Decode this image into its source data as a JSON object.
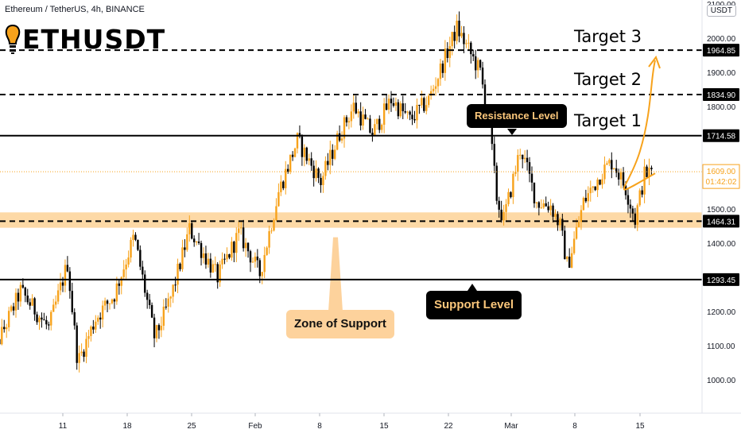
{
  "header": {
    "symbol_full": "Ethereum / TetherUS, 4h, BINANCE",
    "ticker": "ETHUSDT",
    "currency_button": "USDT"
  },
  "colors": {
    "up_candle": "#f7a21b",
    "down_candle": "#000000",
    "zone_fill": "#fdd9a6",
    "arrow": "#f7a21b"
  },
  "chart_data": {
    "type": "candlestick",
    "title": "Ethereum / TetherUS, 4h, BINANCE",
    "y_axis": {
      "ticks": [
        1000,
        1100,
        1200,
        1300,
        1400,
        1500,
        1800,
        1900,
        2000,
        2100
      ],
      "tick_labels": [
        "1000.00",
        "1100.00",
        "1200.00",
        "1300.00",
        "1400.00",
        "1500.00",
        "1800.00",
        "1900.00",
        "2000.00",
        "2100.00"
      ],
      "range": [
        935,
        2115
      ]
    },
    "x_axis": {
      "tick_labels": [
        "11",
        "18",
        "25",
        "Feb",
        "8",
        "15",
        "22",
        "Mar",
        "8",
        "15"
      ]
    },
    "price_path": [
      {
        "t": 3.0,
        "p": 1040
      },
      {
        "t": 6.5,
        "p": 1260
      },
      {
        "t": 9.5,
        "p": 1150
      },
      {
        "t": 11.5,
        "p": 1340
      },
      {
        "t": 12.6,
        "p": 1050
      },
      {
        "t": 14.5,
        "p": 1180
      },
      {
        "t": 16.5,
        "p": 1250
      },
      {
        "t": 18.6,
        "p": 1420
      },
      {
        "t": 20.8,
        "p": 1120
      },
      {
        "t": 22.5,
        "p": 1240
      },
      {
        "t": 24.5,
        "p": 1440
      },
      {
        "t": 27.5,
        "p": 1300
      },
      {
        "t": 29.8,
        "p": 1430
      },
      {
        "t": 32.0,
        "p": 1310
      },
      {
        "t": 34.0,
        "p": 1550
      },
      {
        "t": 36.0,
        "p": 1700
      },
      {
        "t": 38.5,
        "p": 1580
      },
      {
        "t": 40.5,
        "p": 1720
      },
      {
        "t": 42.0,
        "p": 1800
      },
      {
        "t": 44.0,
        "p": 1720
      },
      {
        "t": 46.0,
        "p": 1820
      },
      {
        "t": 48.0,
        "p": 1760
      },
      {
        "t": 50.0,
        "p": 1820
      },
      {
        "t": 52.0,
        "p": 1960
      },
      {
        "t": 53.0,
        "p": 2030
      },
      {
        "t": 55.5,
        "p": 1900
      },
      {
        "t": 56.5,
        "p": 1740
      },
      {
        "t": 57.3,
        "p": 1520
      },
      {
        "t": 58.0,
        "p": 1470
      },
      {
        "t": 59.8,
        "p": 1680
      },
      {
        "t": 61.5,
        "p": 1520
      },
      {
        "t": 63.0,
        "p": 1510
      },
      {
        "t": 64.0,
        "p": 1450
      },
      {
        "t": 64.8,
        "p": 1330
      },
      {
        "t": 66.5,
        "p": 1520
      },
      {
        "t": 68.5,
        "p": 1610
      },
      {
        "t": 69.6,
        "p": 1640
      },
      {
        "t": 71.0,
        "p": 1560
      },
      {
        "t": 72.0,
        "p": 1470
      },
      {
        "t": 73.0,
        "p": 1600
      },
      {
        "t": 73.8,
        "p": 1609
      }
    ],
    "levels": [
      {
        "name": "Target 3",
        "price": 1964.85,
        "label": "1964.85",
        "style": "dashed"
      },
      {
        "name": "Target 2",
        "price": 1834.9,
        "label": "1834.90",
        "style": "dashed"
      },
      {
        "name": "Target 1 / Resistance",
        "price": 1714.58,
        "label": "1714.58",
        "style": "solid"
      },
      {
        "name": "Zone of Support",
        "price": 1464.31,
        "label": "1464.31",
        "style": "dashed"
      },
      {
        "name": "Support",
        "price": 1293.45,
        "label": "1293.45",
        "style": "solid"
      }
    ],
    "zone": [
      1445,
      1490
    ],
    "last_price": {
      "price": 1609.0,
      "label": "1609.00",
      "countdown": "01:42:02"
    },
    "annotations": {
      "target1": "Target 1",
      "target2": "Target 2",
      "target3": "Target 3",
      "resistance": "Resistance Level",
      "support": "Support Level",
      "zone": "Zone of Support"
    }
  }
}
